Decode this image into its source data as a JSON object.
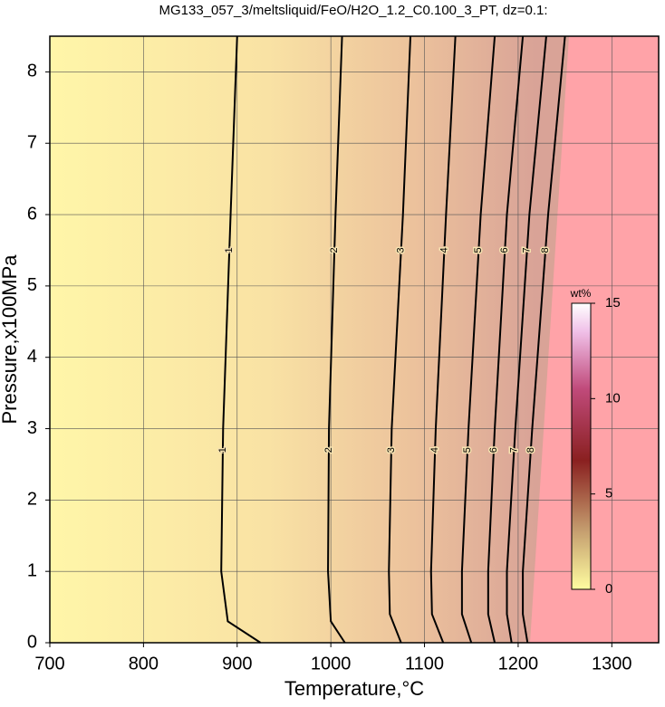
{
  "chart_data": {
    "type": "contour",
    "title": "MG133_057_3/meltsliquid/FeO/H2O_1.2_C0.100_3_PT, dz=0.1:",
    "x_label": "Temperature,°C",
    "y_label": "Pressure,x100MPa",
    "xlim": [
      700,
      1350
    ],
    "ylim": [
      0,
      8.5
    ],
    "xticks": [
      700,
      800,
      900,
      1000,
      1100,
      1200,
      1300
    ],
    "yticks": [
      0,
      1,
      2,
      3,
      4,
      5,
      6,
      7,
      8
    ],
    "grid": true,
    "contours": [
      {
        "level": 1,
        "points": [
          [
            925,
            0
          ],
          [
            890,
            0.3
          ],
          [
            883,
            1
          ],
          [
            885,
            3
          ],
          [
            893,
            6
          ],
          [
            900,
            8.5
          ]
        ]
      },
      {
        "level": 2,
        "points": [
          [
            1015,
            0
          ],
          [
            1000,
            0.3
          ],
          [
            997,
            1
          ],
          [
            998,
            3
          ],
          [
            1005,
            6
          ],
          [
            1012,
            8.5
          ]
        ]
      },
      {
        "level": 3,
        "points": [
          [
            1075,
            0
          ],
          [
            1063,
            0.4
          ],
          [
            1062,
            1
          ],
          [
            1065,
            3
          ],
          [
            1077,
            6
          ],
          [
            1085,
            8.5
          ]
        ]
      },
      {
        "level": 4,
        "points": [
          [
            1120,
            0
          ],
          [
            1108,
            0.4
          ],
          [
            1107,
            1
          ],
          [
            1112,
            3
          ],
          [
            1123,
            6
          ],
          [
            1133,
            8.5
          ]
        ]
      },
      {
        "level": 5,
        "points": [
          [
            1150,
            0
          ],
          [
            1140,
            0.4
          ],
          [
            1140,
            1
          ],
          [
            1147,
            3
          ],
          [
            1160,
            6
          ],
          [
            1175,
            8.5
          ]
        ]
      },
      {
        "level": 6,
        "points": [
          [
            1175,
            0
          ],
          [
            1168,
            0.4
          ],
          [
            1168,
            1
          ],
          [
            1175,
            3
          ],
          [
            1188,
            6
          ],
          [
            1205,
            8.5
          ]
        ]
      },
      {
        "level": 7,
        "points": [
          [
            1193,
            0
          ],
          [
            1188,
            0.4
          ],
          [
            1188,
            1
          ],
          [
            1197,
            3
          ],
          [
            1212,
            6
          ],
          [
            1230,
            8.5
          ]
        ]
      },
      {
        "level": 8,
        "points": [
          [
            1210,
            0
          ],
          [
            1205,
            0.4
          ],
          [
            1205,
            1
          ],
          [
            1215,
            3
          ],
          [
            1232,
            6
          ],
          [
            1250,
            8.5
          ]
        ]
      }
    ],
    "colorbar": {
      "label": "wt%",
      "lim": [
        0,
        15
      ],
      "ticks": [
        0,
        5,
        10,
        15
      ]
    }
  }
}
